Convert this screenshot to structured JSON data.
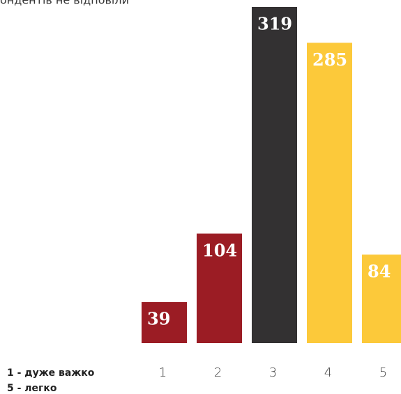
{
  "chart_data": {
    "type": "bar",
    "subtitle": "ондентів не відповіли",
    "categories": [
      "1",
      "2",
      "3",
      "4",
      "5"
    ],
    "values": [
      39,
      104,
      319,
      285,
      84
    ],
    "colors": [
      "#9b1c24",
      "#9b1c24",
      "#333132",
      "#fcc93a",
      "#fcc93a"
    ],
    "legend_lines": [
      "1 - дуже важко",
      "5 - легко"
    ]
  }
}
